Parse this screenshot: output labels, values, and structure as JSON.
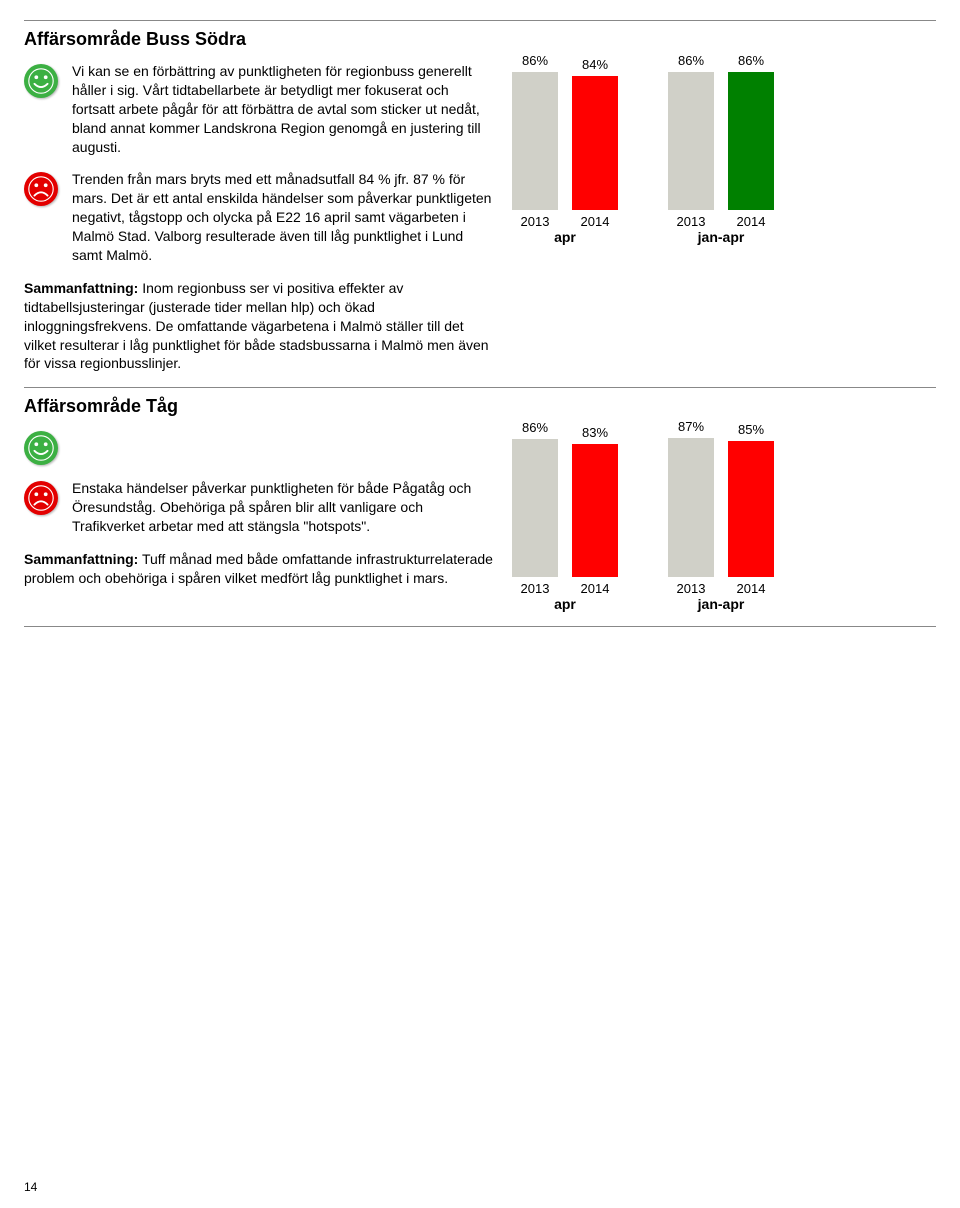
{
  "sections": [
    {
      "title": "Affärsområde Buss Södra",
      "positive_text": "Vi kan se en förbättring av punktligheten för regionbuss generellt håller i sig. Vårt tidtabellarbete är betydligt mer fokuserat och fortsatt arbete pågår för att förbättra de avtal som sticker ut nedåt, bland annat kommer Landskrona Region genomgå en justering till augusti.",
      "negative_text": "Trenden från mars bryts med ett månadsutfall 84 % jfr. 87 % för mars. Det är ett antal enskilda händelser som påverkar punktligeten negativt, tågstopp och olycka på E22 16 april samt vägarbeten i Malmö Stad. Valborg resulterade även till låg punktlighet i Lund samt Malmö.",
      "summary_label": "Sammanfattning:",
      "summary_text": " Inom regionbuss ser vi positiva effekter av tidtabellsjusteringar (justerade tider mellan hlp) och ökad inloggningsfrekvens. De omfattande vägarbetena i Malmö ställer till det vilket resulterar i låg punktlighet för både stadsbussarna i Malmö men även för vissa regionbusslinjer.",
      "chart": {
        "groups": [
          {
            "label": "apr",
            "bars": [
              {
                "year": "2013",
                "pct": 86,
                "label": "86%",
                "color": "#d0d0c8"
              },
              {
                "year": "2014",
                "pct": 84,
                "label": "84%",
                "color": "#ff0000"
              }
            ]
          },
          {
            "label": "jan-apr",
            "bars": [
              {
                "year": "2013",
                "pct": 86,
                "label": "86%",
                "color": "#d0d0c8"
              },
              {
                "year": "2014",
                "pct": 86,
                "label": "86%",
                "color": "#008000"
              }
            ]
          }
        ],
        "max_height": 160
      }
    },
    {
      "title": "Affärsområde Tåg",
      "positive_text": "",
      "negative_text": "Enstaka händelser påverkar punktligheten för både Pågatåg och Öresundståg. Obehöriga på spåren blir allt vanligare och Trafikverket arbetar med att stängsla \"hotspots\".",
      "summary_label": "Sammanfattning:",
      "summary_text": " Tuff månad med både omfattande infrastrukturrelaterade problem och obehöriga i spåren vilket medfört låg punktlighet i mars.",
      "chart": {
        "groups": [
          {
            "label": "apr",
            "bars": [
              {
                "year": "2013",
                "pct": 86,
                "label": "86%",
                "color": "#d0d0c8"
              },
              {
                "year": "2014",
                "pct": 83,
                "label": "83%",
                "color": "#ff0000"
              }
            ]
          },
          {
            "label": "jan-apr",
            "bars": [
              {
                "year": "2013",
                "pct": 87,
                "label": "87%",
                "color": "#d0d0c8"
              },
              {
                "year": "2014",
                "pct": 85,
                "label": "85%",
                "color": "#ff0000"
              }
            ]
          }
        ],
        "max_height": 160
      }
    }
  ],
  "page_number": "14",
  "colors": {
    "green_face": "#3cb043",
    "red_face": "#e30000"
  }
}
